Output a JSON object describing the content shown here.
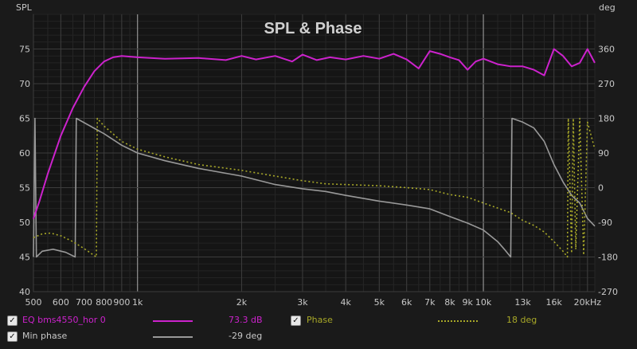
{
  "chart_data": {
    "type": "line",
    "title": "SPL & Phase",
    "xlabel": "",
    "y_left_label": "SPL",
    "y_right_label": "deg",
    "x_scale": "log",
    "xlim": [
      500,
      21000
    ],
    "ylim": [
      40,
      80
    ],
    "y2lim": [
      -270,
      450
    ],
    "grid": true,
    "x_ticks": [
      {
        "v": 500,
        "label": "500"
      },
      {
        "v": 600,
        "label": "600"
      },
      {
        "v": 700,
        "label": "700"
      },
      {
        "v": 800,
        "label": "800"
      },
      {
        "v": 900,
        "label": "900"
      },
      {
        "v": 1000,
        "label": "1k"
      },
      {
        "v": 2000,
        "label": "2k"
      },
      {
        "v": 3000,
        "label": "3k"
      },
      {
        "v": 4000,
        "label": "4k"
      },
      {
        "v": 5000,
        "label": "5k"
      },
      {
        "v": 6000,
        "label": "6k"
      },
      {
        "v": 7000,
        "label": "7k"
      },
      {
        "v": 8000,
        "label": "8k"
      },
      {
        "v": 9000,
        "label": "9k"
      },
      {
        "v": 10000,
        "label": "10k"
      },
      {
        "v": 13000,
        "label": "13k"
      },
      {
        "v": 16000,
        "label": "16k"
      },
      {
        "v": 20000,
        "label": "20kHz"
      }
    ],
    "y_ticks": [
      40,
      45,
      50,
      55,
      60,
      65,
      70,
      75
    ],
    "y2_ticks": [
      -270,
      -180,
      -90,
      0,
      90,
      180,
      270,
      360
    ],
    "series": [
      {
        "name": "EQ bms4550_hor 0",
        "axis": "left",
        "color": "#cc22cc",
        "points": [
          [
            500,
            50.5
          ],
          [
            520,
            53
          ],
          [
            550,
            57
          ],
          [
            600,
            62.5
          ],
          [
            650,
            66.5
          ],
          [
            700,
            69.5
          ],
          [
            750,
            71.8
          ],
          [
            800,
            73.2
          ],
          [
            850,
            73.8
          ],
          [
            900,
            74
          ],
          [
            1000,
            73.8
          ],
          [
            1200,
            73.6
          ],
          [
            1500,
            73.7
          ],
          [
            1800,
            73.4
          ],
          [
            2000,
            74
          ],
          [
            2200,
            73.5
          ],
          [
            2500,
            74
          ],
          [
            2800,
            73.2
          ],
          [
            3000,
            74.2
          ],
          [
            3300,
            73.4
          ],
          [
            3600,
            73.8
          ],
          [
            4000,
            73.5
          ],
          [
            4500,
            74
          ],
          [
            5000,
            73.6
          ],
          [
            5500,
            74.3
          ],
          [
            6000,
            73.5
          ],
          [
            6500,
            72.2
          ],
          [
            7000,
            74.7
          ],
          [
            7500,
            74.3
          ],
          [
            8000,
            73.8
          ],
          [
            8500,
            73.4
          ],
          [
            9000,
            72
          ],
          [
            9500,
            73.2
          ],
          [
            10000,
            73.6
          ],
          [
            11000,
            72.8
          ],
          [
            12000,
            72.5
          ],
          [
            13000,
            72.5
          ],
          [
            14000,
            72
          ],
          [
            15000,
            71.2
          ],
          [
            16000,
            75
          ],
          [
            17000,
            74
          ],
          [
            18000,
            72.5
          ],
          [
            19000,
            73
          ],
          [
            20000,
            75
          ],
          [
            21000,
            73
          ]
        ]
      },
      {
        "name": "Phase",
        "axis": "right",
        "color": "#a8a828",
        "style": "dotted",
        "points": [
          [
            500,
            -130
          ],
          [
            530,
            -120
          ],
          [
            560,
            -118
          ],
          [
            600,
            -125
          ],
          [
            650,
            -140
          ],
          [
            700,
            -158
          ],
          [
            760,
            -180
          ],
          [
            765,
            180
          ],
          [
            800,
            160
          ],
          [
            900,
            120
          ],
          [
            1000,
            100
          ],
          [
            1200,
            80
          ],
          [
            1500,
            60
          ],
          [
            2000,
            45
          ],
          [
            2500,
            30
          ],
          [
            3000,
            18
          ],
          [
            3500,
            10
          ],
          [
            4000,
            8
          ],
          [
            5000,
            5
          ],
          [
            6000,
            0
          ],
          [
            7000,
            -5
          ],
          [
            8000,
            -18
          ],
          [
            9000,
            -25
          ],
          [
            10000,
            -40
          ],
          [
            12000,
            -65
          ],
          [
            13000,
            -85
          ],
          [
            14000,
            -98
          ],
          [
            15000,
            -115
          ],
          [
            16000,
            -140
          ],
          [
            17000,
            -165
          ],
          [
            17500,
            -180
          ],
          [
            17600,
            180
          ],
          [
            18000,
            -170
          ],
          [
            18200,
            180
          ],
          [
            18500,
            -160
          ],
          [
            19000,
            180
          ],
          [
            19500,
            -175
          ],
          [
            20000,
            170
          ],
          [
            21000,
            100
          ]
        ]
      },
      {
        "name": "Min phase",
        "axis": "right",
        "color": "#999999",
        "style": "solid",
        "points": [
          [
            500,
            -180
          ],
          [
            505,
            180
          ],
          [
            510,
            -180
          ],
          [
            530,
            -165
          ],
          [
            570,
            -160
          ],
          [
            620,
            -168
          ],
          [
            660,
            -180
          ],
          [
            665,
            180
          ],
          [
            800,
            140
          ],
          [
            900,
            110
          ],
          [
            1000,
            90
          ],
          [
            1200,
            70
          ],
          [
            1500,
            50
          ],
          [
            2000,
            30
          ],
          [
            2500,
            8
          ],
          [
            3000,
            -3
          ],
          [
            3500,
            -10
          ],
          [
            4000,
            -20
          ],
          [
            5000,
            -35
          ],
          [
            6000,
            -45
          ],
          [
            7000,
            -55
          ],
          [
            8000,
            -75
          ],
          [
            9000,
            -92
          ],
          [
            10000,
            -110
          ],
          [
            11000,
            -140
          ],
          [
            11500,
            -160
          ],
          [
            12000,
            -180
          ],
          [
            12100,
            180
          ],
          [
            13000,
            170
          ],
          [
            14000,
            155
          ],
          [
            15000,
            120
          ],
          [
            16000,
            60
          ],
          [
            17000,
            15
          ],
          [
            18000,
            -20
          ],
          [
            19000,
            -40
          ],
          [
            20000,
            -80
          ],
          [
            21000,
            -100
          ]
        ]
      }
    ],
    "legend": [
      {
        "name": "EQ bms4550_hor 0",
        "value": "73.3 dB",
        "checked": true,
        "color": "#cc22cc",
        "style": "solid",
        "name_color": "#cc22cc",
        "value_color": "#cc22cc"
      },
      {
        "name": "Phase",
        "value": "18 deg",
        "checked": true,
        "color": "#a8a828",
        "style": "dotted",
        "name_color": "#a8a828",
        "value_color": "#a8a828"
      },
      {
        "name": "Min phase",
        "value": "-29 deg",
        "checked": true,
        "color": "#999999",
        "style": "solid",
        "name_color": "#c8c8c8",
        "value_color": "#c8c8c8"
      }
    ]
  }
}
